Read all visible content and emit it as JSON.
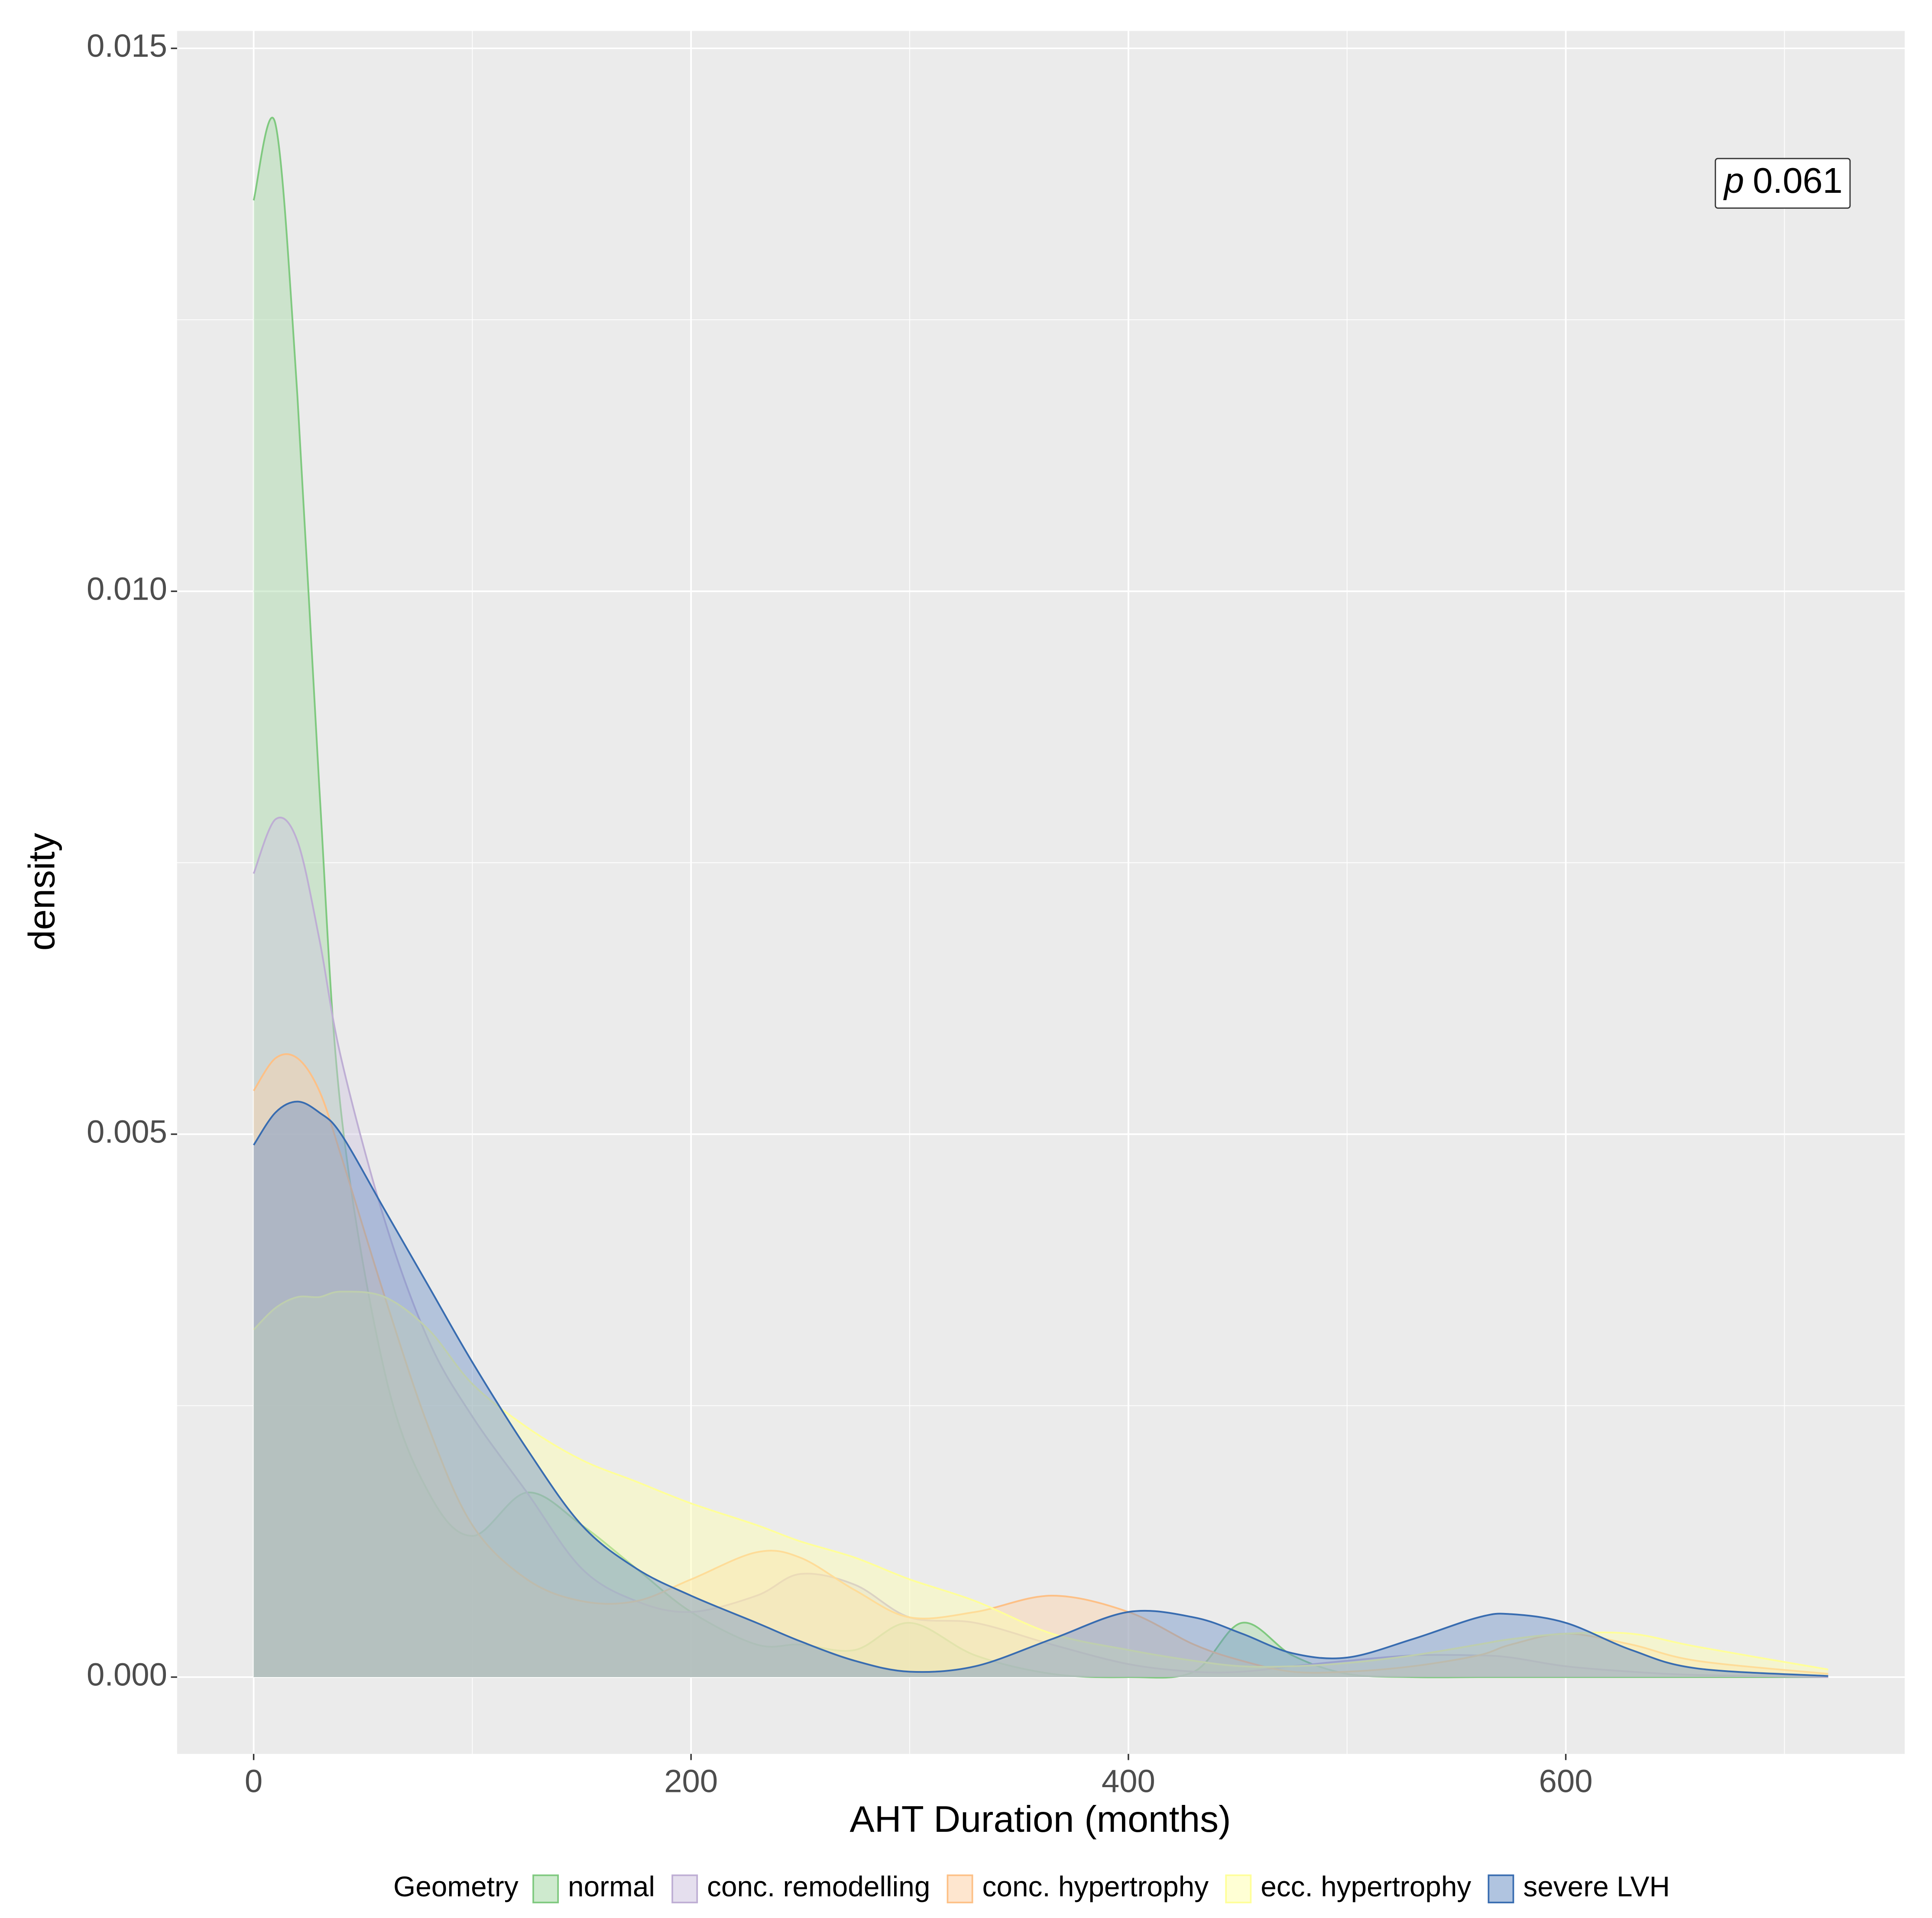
{
  "chart_data": {
    "type": "density",
    "x_label": "AHT Duration (months)",
    "y_label": "density",
    "annotation": {
      "symbol": "p",
      "value": "0.061"
    },
    "legend_title": "Geometry",
    "legend": "bottom",
    "grid": true,
    "xlim": [
      -35,
      755
    ],
    "ylim": [
      -0.000707,
      0.01516
    ],
    "xticks": [
      0,
      200,
      400,
      600
    ],
    "yticks": [
      {
        "value": 0,
        "label": "0.000"
      },
      {
        "value": 0.005,
        "label": "0.005"
      },
      {
        "value": 0.01,
        "label": "0.010"
      },
      {
        "value": 0.015,
        "label": "0.015"
      }
    ],
    "x": [
      0,
      10,
      20,
      30,
      40,
      60,
      80,
      100,
      125,
      150,
      175,
      200,
      230,
      250,
      275,
      300,
      330,
      365,
      400,
      430,
      452,
      475,
      500,
      530,
      560,
      575,
      600,
      630,
      660,
      720
    ],
    "series": [
      {
        "name": "normal",
        "color": "#7fc97f",
        "fill": "#a6d9a6",
        "values": [
          0.0136,
          0.0143,
          0.0118,
          0.0082,
          0.0052,
          0.0028,
          0.0017,
          0.0013,
          0.0017,
          0.0014,
          0.001,
          0.0006,
          0.0003,
          0.0003,
          0.00025,
          0.0005,
          0.0002,
          3e-05,
          0,
          5e-05,
          0.0005,
          0.0002,
          3e-05,
          0,
          0,
          0,
          0,
          0,
          0,
          0
        ]
      },
      {
        "name": "conc. remodelling",
        "color": "#beaed4",
        "fill": "#cfc5e0",
        "values": [
          0.0074,
          0.0079,
          0.0077,
          0.0068,
          0.0057,
          0.0042,
          0.0031,
          0.0024,
          0.0017,
          0.001,
          0.0007,
          0.0006,
          0.00075,
          0.00095,
          0.00085,
          0.00055,
          0.0005,
          0.0003,
          0.00012,
          5e-05,
          5e-05,
          0.0001,
          0.00015,
          0.0002,
          0.0002,
          0.00018,
          0.0001,
          5e-05,
          2e-05,
          0
        ]
      },
      {
        "name": "conc. hypertrophy",
        "color": "#fdc086",
        "fill": "#fdd2a8",
        "values": [
          0.0054,
          0.0057,
          0.0057,
          0.0054,
          0.0048,
          0.0035,
          0.0023,
          0.0014,
          0.0009,
          0.0007,
          0.0007,
          0.0009,
          0.00115,
          0.0011,
          0.0008,
          0.00055,
          0.0006,
          0.00075,
          0.0006,
          0.0003,
          0.00015,
          5e-05,
          5e-05,
          0.0001,
          0.0002,
          0.0003,
          0.0004,
          0.0003,
          0.00015,
          3e-05
        ]
      },
      {
        "name": "ecc. hypertrophy",
        "color": "#ffff99",
        "fill": "#ffffb0",
        "values": [
          0.0032,
          0.0034,
          0.0035,
          0.0035,
          0.00355,
          0.0035,
          0.0032,
          0.0027,
          0.0023,
          0.002,
          0.0018,
          0.0016,
          0.0014,
          0.00125,
          0.0011,
          0.0009,
          0.0007,
          0.0004,
          0.00025,
          0.00015,
          0.0001,
          0.0001,
          0.00013,
          0.0002,
          0.0003,
          0.00035,
          0.0004,
          0.0004,
          0.00028,
          7e-05
        ]
      },
      {
        "name": "severe LVH",
        "color": "#386cb0",
        "fill": "#6f93c7",
        "values": [
          0.0049,
          0.0052,
          0.0053,
          0.0052,
          0.005,
          0.0043,
          0.0036,
          0.0029,
          0.0021,
          0.0014,
          0.001,
          0.00075,
          0.0005,
          0.00033,
          0.00015,
          5e-05,
          0.0001,
          0.00035,
          0.0006,
          0.00055,
          0.0004,
          0.00022,
          0.00018,
          0.00035,
          0.00055,
          0.00058,
          0.0005,
          0.00025,
          8e-05,
          1e-05
        ]
      }
    ]
  }
}
